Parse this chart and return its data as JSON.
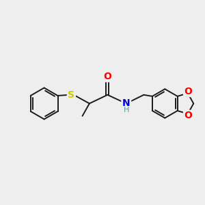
{
  "background_color": "#eeeeee",
  "bond_color": "#1a1a1a",
  "atom_colors": {
    "O": "#ff0000",
    "N": "#0000cc",
    "S": "#cccc00",
    "H": "#4aa0a0"
  },
  "figsize": [
    3.0,
    3.0
  ],
  "dpi": 100
}
